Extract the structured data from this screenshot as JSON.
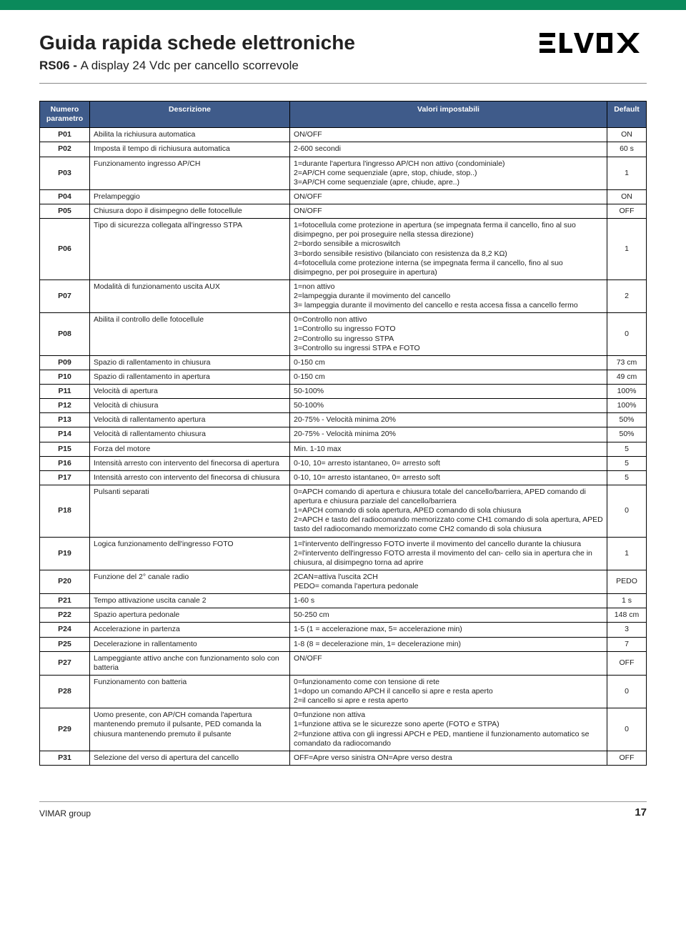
{
  "header": {
    "title": "Guida rapida schede elettroniche",
    "subtitle_bold": "RS06 - ",
    "subtitle_rest": "A display 24 Vdc per cancello scorrevole",
    "logo_text": "ELVOX"
  },
  "table": {
    "columns": [
      "Numero parametro",
      "Descrizione",
      "Valori impostabili",
      "Default"
    ],
    "rows": [
      {
        "p": "P01",
        "d": "Abilita la richiusura automatica",
        "v": "ON/OFF",
        "def": "ON"
      },
      {
        "p": "P02",
        "d": "Imposta il tempo di richiusura automatica",
        "v": "2-600 secondi",
        "def": "60 s"
      },
      {
        "p": "P03",
        "d": "Funzionamento ingresso AP/CH",
        "v": "1=durante l'apertura l'ingresso AP/CH non attivo (condominiale)\n2=AP/CH come sequenziale (apre, stop, chiude, stop..)\n3=AP/CH come sequenziale (apre, chiude, apre..)",
        "def": "1"
      },
      {
        "p": "P04",
        "d": "Prelampeggio",
        "v": "ON/OFF",
        "def": "ON"
      },
      {
        "p": "P05",
        "d": "Chiusura dopo il disimpegno delle fotocellule",
        "v": "ON/OFF",
        "def": "OFF"
      },
      {
        "p": "P06",
        "d": "Tipo di sicurezza collegata all'ingresso STPA",
        "v": "1=fotocellula come protezione in apertura (se impegnata ferma il cancello, fino al suo disimpegno, per poi proseguire nella stessa direzione)\n2=bordo sensibile a microswitch\n3=bordo sensibile resistivo (bilanciato con resistenza da 8,2 KΩ)\n4=fotocellula come protezione interna (se impegnata ferma il cancello, fino al suo disimpegno, per poi proseguire in apertura)",
        "def": "1"
      },
      {
        "p": "P07",
        "d": "Modalità di funzionamento uscita AUX",
        "v": "1=non attivo\n2=lampeggia durante il movimento del cancello\n3= lampeggia durante il movimento del cancello e resta accesa fissa a cancello fermo",
        "def": "2"
      },
      {
        "p": "P08",
        "d": "Abilita il controllo delle fotocellule",
        "v": "0=Controllo non attivo\n1=Controllo su ingresso FOTO\n2=Controllo su ingresso STPA\n3=Controllo su ingressi STPA e FOTO",
        "def": "0"
      },
      {
        "p": "P09",
        "d": "Spazio di rallentamento in chiusura",
        "v": "0-150 cm",
        "def": "73 cm"
      },
      {
        "p": "P10",
        "d": "Spazio di rallentamento in apertura",
        "v": "0-150 cm",
        "def": "49 cm"
      },
      {
        "p": "P11",
        "d": "Velocità di apertura",
        "v": "50-100%",
        "def": "100%"
      },
      {
        "p": "P12",
        "d": "Velocità di chiusura",
        "v": "50-100%",
        "def": "100%"
      },
      {
        "p": "P13",
        "d": "Velocità di rallentamento apertura",
        "v": "20-75% - Velocità minima 20%",
        "def": "50%"
      },
      {
        "p": "P14",
        "d": "Velocità  di rallentamento chiusura",
        "v": "20-75% - Velocità minima 20%",
        "def": "50%"
      },
      {
        "p": "P15",
        "d": "Forza del motore",
        "v": "Min. 1-10 max",
        "def": "5"
      },
      {
        "p": "P16",
        "d": "Intensità arresto con intervento del finecorsa di apertura",
        "v": "0-10, 10= arresto istantaneo, 0= arresto soft",
        "def": "5"
      },
      {
        "p": "P17",
        "d": "Intensità arresto con intervento del finecorsa di chiusura",
        "v": "0-10, 10= arresto istantaneo, 0= arresto soft",
        "def": "5"
      },
      {
        "p": "P18",
        "d": "Pulsanti separati",
        "v": "0=APCH comando di apertura e chiusura totale del cancello/barriera, APED comando di apertura e chiusura parziale del cancello/barriera\n1=APCH comando di sola apertura, APED comando di sola chiusura\n2=APCH e tasto del radiocomando memorizzato come CH1 comando di sola apertura, APED tasto del radiocomando memorizzato come CH2 comando di sola chiusura",
        "def": "0"
      },
      {
        "p": "P19",
        "d": "Logica funzionamento dell'ingresso  FOTO",
        "v": "1=l'intervento dell'ingresso FOTO inverte il movimento del cancello durante la chiusura\n2=l'intervento dell'ingresso FOTO arresta  il movimento del can- cello sia in apertura che in chiusura, al disimpegno torna ad aprire",
        "def": "1"
      },
      {
        "p": "P20",
        "d": "Funzione del 2° canale radio",
        "v": "2CAN=attiva l'uscita 2CH\nPEDO= comanda l'apertura pedonale",
        "def": "PEDO"
      },
      {
        "p": "P21",
        "d": "Tempo attivazione uscita canale 2",
        "v": "1-60 s",
        "def": "1 s"
      },
      {
        "p": "P22",
        "d": "Spazio apertura pedonale",
        "v": "50-250 cm",
        "def": "148 cm"
      },
      {
        "p": "P24",
        "d": "Accelerazione in partenza",
        "v": "1-5 (1 = accelerazione max, 5= accelerazione min)",
        "def": "3"
      },
      {
        "p": "P25",
        "d": "Decelerazione in rallentamento",
        "v": "1-8 (8 = decelerazione min, 1= decelerazione min)",
        "def": "7"
      },
      {
        "p": "P27",
        "d": "Lampeggiante attivo anche con funzionamento solo con batteria",
        "v": "ON/OFF",
        "def": "OFF"
      },
      {
        "p": "P28",
        "d": "Funzionamento con  batteria",
        "v": "0=funzionamento come con tensione di rete\n1=dopo un comando APCH il cancello si apre e resta aperto\n2=il cancello si apre e resta aperto",
        "def": "0"
      },
      {
        "p": "P29",
        "d": "Uomo presente, con AP/CH comanda l'apertura mantenendo premuto il pulsante, PED comanda la chiusura mantenendo premuto il pulsante",
        "v": "0=funzione non attiva\n1=funzione attiva se le sicurezze sono aperte (FOTO e STPA)\n2=funzione attiva con gli ingressi APCH e PED, mantiene il funzionamento automatico se comandato da radiocomando",
        "def": "0"
      },
      {
        "p": "P31",
        "d": "Selezione del verso di apertura del cancello",
        "v": "OFF=Apre verso sinistra ON=Apre verso destra",
        "def": "OFF"
      }
    ]
  },
  "footer": {
    "left": "VIMAR group",
    "page": "17"
  },
  "colors": {
    "top_bar": "#0b8a5b",
    "th_bg": "#3f5b8a",
    "th_fg": "#ffffff",
    "border": "#000000"
  }
}
